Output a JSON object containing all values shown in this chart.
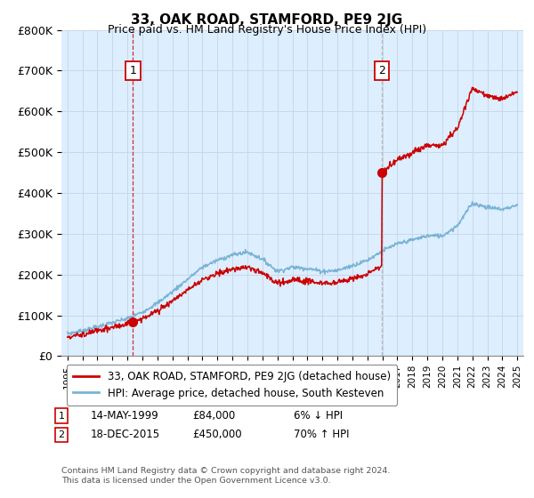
{
  "title": "33, OAK ROAD, STAMFORD, PE9 2JG",
  "subtitle": "Price paid vs. HM Land Registry's House Price Index (HPI)",
  "ylabel_ticks": [
    "£0",
    "£100K",
    "£200K",
    "£300K",
    "£400K",
    "£500K",
    "£600K",
    "£700K",
    "£800K"
  ],
  "ytick_vals": [
    0,
    100000,
    200000,
    300000,
    400000,
    500000,
    600000,
    700000,
    800000
  ],
  "ylim": [
    0,
    800000
  ],
  "xlim_start": 1994.6,
  "xlim_end": 2025.4,
  "hpi_color": "#7ab3d4",
  "price_color": "#cc0000",
  "vline1_color": "#cc0000",
  "vline2_color": "#aaaaaa",
  "bg_fill_color": "#ddeeff",
  "marker1_x": 1999.37,
  "marker1_y": 84000,
  "marker1_label": "1",
  "marker2_x": 2015.96,
  "marker2_y": 450000,
  "marker2_label": "2",
  "legend_line1": "33, OAK ROAD, STAMFORD, PE9 2JG (detached house)",
  "legend_line2": "HPI: Average price, detached house, South Kesteven",
  "note1_date": "14-MAY-1999",
  "note1_price": "£84,000",
  "note1_hpi": "6% ↓ HPI",
  "note2_date": "18-DEC-2015",
  "note2_price": "£450,000",
  "note2_hpi": "70% ↑ HPI",
  "copyright": "Contains HM Land Registry data © Crown copyright and database right 2024.\nThis data is licensed under the Open Government Licence v3.0.",
  "background_color": "#ffffff",
  "grid_color": "#c8d8e8"
}
